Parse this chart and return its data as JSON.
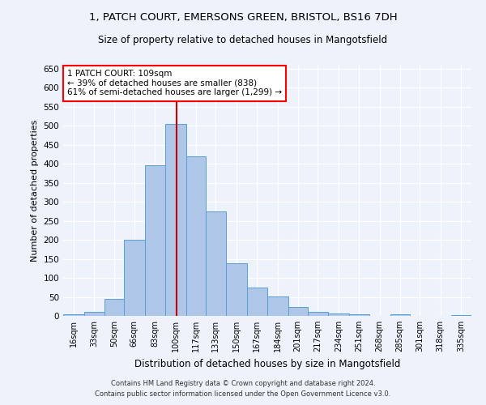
{
  "title_line1": "1, PATCH COURT, EMERSONS GREEN, BRISTOL, BS16 7DH",
  "title_line2": "Size of property relative to detached houses in Mangotsfield",
  "xlabel": "Distribution of detached houses by size in Mangotsfield",
  "ylabel": "Number of detached properties",
  "annotation_line1": "1 PATCH COURT: 109sqm",
  "annotation_line2": "← 39% of detached houses are smaller (838)",
  "annotation_line3": "61% of semi-detached houses are larger (1,299) →",
  "bar_color": "#aec6e8",
  "bar_edge_color": "#5a9fd4",
  "vline_x": 109,
  "vline_color": "#cc0000",
  "background_color": "#eef2fb",
  "grid_color": "#ffffff",
  "footer_line1": "Contains HM Land Registry data © Crown copyright and database right 2024.",
  "footer_line2": "Contains public sector information licensed under the Open Government Licence v3.0.",
  "bin_edges": [
    16,
    33,
    50,
    66,
    83,
    100,
    117,
    133,
    150,
    167,
    184,
    201,
    217,
    234,
    251,
    268,
    285,
    301,
    318,
    335,
    352
  ],
  "bin_heights": [
    5,
    10,
    45,
    200,
    395,
    505,
    420,
    275,
    138,
    75,
    52,
    23,
    10,
    7,
    5,
    0,
    5,
    0,
    0,
    3
  ],
  "ylim": [
    0,
    660
  ],
  "yticks": [
    0,
    50,
    100,
    150,
    200,
    250,
    300,
    350,
    400,
    450,
    500,
    550,
    600,
    650
  ]
}
